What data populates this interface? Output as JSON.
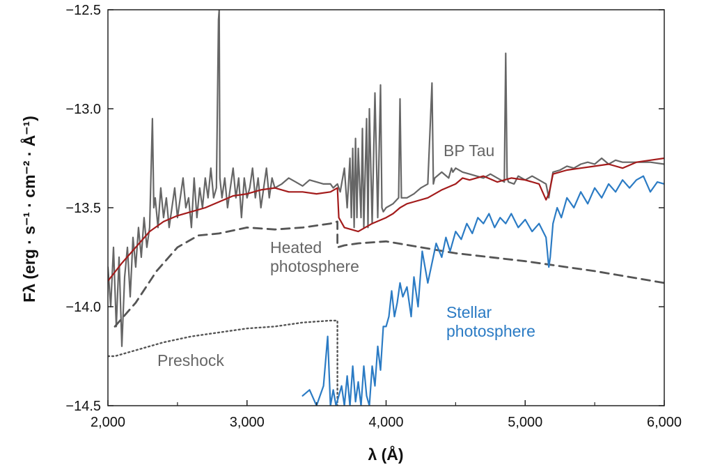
{
  "chart_data": {
    "type": "line",
    "xlabel": "λ (Å)",
    "ylabel": "Fλ (erg · s⁻¹ · cm⁻² · Å⁻¹)",
    "xlim": [
      2000,
      6000
    ],
    "ylim": [
      -14.5,
      -12.5
    ],
    "x_ticks": [
      "2,000",
      "3,000",
      "4,000",
      "5,000",
      "6,000"
    ],
    "y_ticks": [
      "−14.5",
      "−14.0",
      "−13.5",
      "−13.0",
      "−12.5"
    ],
    "grid": false,
    "colors": {
      "bptau": "#666666",
      "model": "#a31b1b",
      "dashed": "#555555",
      "dotted": "#555555",
      "stellar": "#2b7bc4"
    },
    "series": [
      {
        "key": "bptau",
        "style": "solid",
        "x": [
          2000,
          2020,
          2040,
          2060,
          2080,
          2100,
          2120,
          2140,
          2160,
          2180,
          2200,
          2220,
          2240,
          2260,
          2280,
          2300,
          2320,
          2330,
          2340,
          2360,
          2380,
          2400,
          2420,
          2440,
          2460,
          2480,
          2500,
          2520,
          2540,
          2560,
          2580,
          2600,
          2620,
          2640,
          2660,
          2680,
          2700,
          2720,
          2740,
          2760,
          2780,
          2795,
          2800,
          2805,
          2820,
          2840,
          2860,
          2880,
          2900,
          2920,
          2940,
          2960,
          2980,
          3000,
          3020,
          3040,
          3060,
          3080,
          3100,
          3120,
          3140,
          3160,
          3180,
          3200,
          3250,
          3300,
          3350,
          3400,
          3450,
          3500,
          3550,
          3600,
          3620,
          3650,
          3670,
          3700,
          3720,
          3740,
          3750,
          3760,
          3770,
          3780,
          3790,
          3800,
          3820,
          3830,
          3840,
          3860,
          3870,
          3880,
          3900,
          3920,
          3940,
          3960,
          3970,
          3980,
          4000,
          4050,
          4090,
          4100,
          4110,
          4150,
          4200,
          4250,
          4300,
          4330,
          4340,
          4350,
          4400,
          4450,
          4470,
          4480,
          4500,
          4550,
          4600,
          4650,
          4700,
          4750,
          4800,
          4850,
          4860,
          4870,
          4880,
          4920,
          4950,
          5000,
          5050,
          5100,
          5150,
          5170,
          5180,
          5200,
          5250,
          5300,
          5350,
          5400,
          5450,
          5500,
          5550,
          5600,
          5650,
          5700,
          5800,
          5900,
          6000
        ],
        "y": [
          -13.8,
          -14.0,
          -13.7,
          -14.1,
          -13.75,
          -14.2,
          -13.85,
          -13.7,
          -13.95,
          -13.65,
          -13.8,
          -13.6,
          -13.75,
          -13.55,
          -13.7,
          -13.6,
          -13.05,
          -13.5,
          -13.45,
          -13.6,
          -13.4,
          -13.55,
          -13.45,
          -13.6,
          -13.5,
          -13.4,
          -13.55,
          -13.45,
          -13.35,
          -13.5,
          -13.45,
          -13.6,
          -13.35,
          -13.55,
          -13.4,
          -13.5,
          -13.35,
          -13.45,
          -13.3,
          -13.45,
          -13.4,
          -12.55,
          -12.5,
          -13.35,
          -13.45,
          -13.35,
          -13.5,
          -13.4,
          -13.3,
          -13.45,
          -13.35,
          -13.55,
          -13.35,
          -13.45,
          -13.4,
          -13.3,
          -13.45,
          -13.35,
          -13.5,
          -13.4,
          -13.3,
          -13.45,
          -13.35,
          -13.4,
          -13.38,
          -13.35,
          -13.37,
          -13.39,
          -13.36,
          -13.37,
          -13.38,
          -13.38,
          -13.4,
          -13.38,
          -13.42,
          -13.3,
          -13.5,
          -13.25,
          -13.55,
          -13.2,
          -13.6,
          -13.15,
          -13.55,
          -13.2,
          -13.55,
          -13.1,
          -13.6,
          -13.05,
          -13.6,
          -13.0,
          -13.58,
          -12.92,
          -13.55,
          -12.88,
          -13.5,
          -13.52,
          -13.5,
          -13.48,
          -13.45,
          -12.95,
          -13.45,
          -13.45,
          -13.43,
          -13.4,
          -13.38,
          -12.87,
          -13.38,
          -13.35,
          -13.32,
          -13.35,
          -13.3,
          -13.32,
          -13.3,
          -13.32,
          -13.33,
          -13.34,
          -13.35,
          -13.33,
          -13.35,
          -13.37,
          -12.72,
          -13.35,
          -13.37,
          -13.38,
          -13.34,
          -13.36,
          -13.34,
          -13.36,
          -13.38,
          -13.45,
          -13.4,
          -13.32,
          -13.31,
          -13.29,
          -13.3,
          -13.28,
          -13.27,
          -13.28,
          -13.25,
          -13.28,
          -13.26,
          -13.27,
          -13.27,
          -13.27,
          -13.28
        ]
      },
      {
        "key": "model",
        "style": "solid",
        "x": [
          2000,
          2100,
          2200,
          2300,
          2400,
          2500,
          2600,
          2700,
          2800,
          2900,
          3000,
          3100,
          3200,
          3300,
          3400,
          3500,
          3600,
          3650,
          3660,
          3700,
          3800,
          3900,
          4000,
          4050,
          4100,
          4150,
          4200,
          4300,
          4400,
          4500,
          4550,
          4600,
          4700,
          4800,
          4900,
          5000,
          5100,
          5150,
          5170,
          5180,
          5200,
          5300,
          5400,
          5500,
          5600,
          5700,
          5800,
          5900,
          6000
        ],
        "y": [
          -13.87,
          -13.78,
          -13.7,
          -13.62,
          -13.57,
          -13.54,
          -13.52,
          -13.5,
          -13.47,
          -13.44,
          -13.43,
          -13.41,
          -13.4,
          -13.42,
          -13.42,
          -13.43,
          -13.42,
          -13.4,
          -13.55,
          -13.6,
          -13.62,
          -13.58,
          -13.55,
          -13.53,
          -13.5,
          -13.48,
          -13.47,
          -13.45,
          -13.41,
          -13.38,
          -13.35,
          -13.36,
          -13.34,
          -13.37,
          -13.35,
          -13.36,
          -13.38,
          -13.46,
          -13.43,
          -13.4,
          -13.33,
          -13.31,
          -13.3,
          -13.29,
          -13.28,
          -13.3,
          -13.27,
          -13.26,
          -13.25
        ]
      },
      {
        "key": "dashed",
        "style": "dashed",
        "x": [
          2050,
          2200,
          2350,
          2500,
          2650,
          2800,
          3000,
          3200,
          3400,
          3600,
          3650,
          3650,
          3700,
          3800,
          4000,
          4500,
          5000,
          5500,
          6000
        ],
        "y": [
          -14.1,
          -13.98,
          -13.82,
          -13.7,
          -13.64,
          -13.63,
          -13.6,
          -13.61,
          -13.6,
          -13.58,
          -13.57,
          -13.7,
          -13.69,
          -13.68,
          -13.67,
          -13.73,
          -13.77,
          -13.82,
          -13.88
        ]
      },
      {
        "key": "dotted",
        "style": "dotted",
        "x": [
          2000,
          2050,
          2200,
          2400,
          2600,
          2800,
          3000,
          3200,
          3400,
          3600,
          3650,
          3650
        ],
        "y": [
          -14.25,
          -14.25,
          -14.22,
          -14.18,
          -14.15,
          -14.13,
          -14.11,
          -14.1,
          -14.08,
          -14.07,
          -14.07,
          -14.5
        ]
      },
      {
        "key": "stellar",
        "style": "solid",
        "x": [
          3400,
          3450,
          3500,
          3550,
          3580,
          3600,
          3620,
          3640,
          3660,
          3680,
          3700,
          3720,
          3740,
          3760,
          3780,
          3800,
          3820,
          3840,
          3860,
          3880,
          3900,
          3920,
          3940,
          3960,
          3980,
          4000,
          4020,
          4040,
          4060,
          4080,
          4100,
          4120,
          4150,
          4180,
          4200,
          4230,
          4260,
          4300,
          4330,
          4360,
          4400,
          4430,
          4460,
          4500,
          4540,
          4580,
          4620,
          4660,
          4700,
          4740,
          4780,
          4820,
          4860,
          4900,
          4950,
          5000,
          5050,
          5100,
          5150,
          5170,
          5180,
          5200,
          5230,
          5260,
          5300,
          5350,
          5400,
          5450,
          5500,
          5550,
          5600,
          5650,
          5700,
          5750,
          5800,
          5850,
          5900,
          5950,
          6000
        ],
        "y": [
          -14.45,
          -14.42,
          -14.5,
          -14.4,
          -14.15,
          -14.5,
          -14.42,
          -14.5,
          -14.45,
          -14.4,
          -14.5,
          -14.35,
          -14.5,
          -14.3,
          -14.48,
          -14.38,
          -14.5,
          -14.3,
          -14.45,
          -14.5,
          -14.3,
          -14.4,
          -14.2,
          -14.32,
          -14.1,
          -14.1,
          -14.05,
          -13.92,
          -14.05,
          -13.98,
          -13.88,
          -13.95,
          -13.9,
          -14.05,
          -13.85,
          -14.0,
          -13.72,
          -13.88,
          -13.78,
          -13.68,
          -13.75,
          -13.65,
          -13.72,
          -13.62,
          -13.66,
          -13.58,
          -13.63,
          -13.55,
          -13.58,
          -13.53,
          -13.6,
          -13.55,
          -13.58,
          -13.53,
          -13.6,
          -13.56,
          -13.62,
          -13.58,
          -13.65,
          -13.8,
          -13.75,
          -13.58,
          -13.5,
          -13.55,
          -13.45,
          -13.5,
          -13.42,
          -13.48,
          -13.4,
          -13.45,
          -13.38,
          -13.42,
          -13.36,
          -13.4,
          -13.36,
          -13.34,
          -13.42,
          -13.37,
          -13.38
        ]
      }
    ],
    "annotations": [
      {
        "key": "bptau",
        "lines": [
          "BP Tau"
        ]
      },
      {
        "key": "heated",
        "lines": [
          "Heated",
          "photosphere"
        ]
      },
      {
        "key": "stellar",
        "lines": [
          "Stellar",
          "photosphere"
        ]
      },
      {
        "key": "preshock",
        "lines": [
          "Preshock"
        ]
      }
    ]
  }
}
